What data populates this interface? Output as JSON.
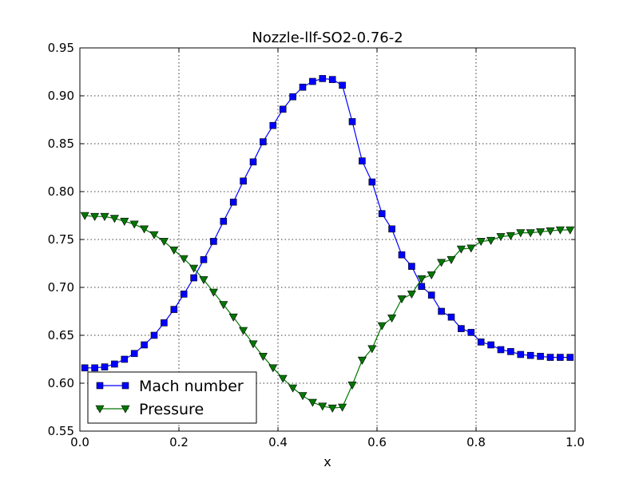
{
  "chart_data": {
    "type": "line",
    "title": "Nozzle-llf-SO2-0.76-2",
    "xlabel": "x",
    "ylabel": "",
    "xlim": [
      0.0,
      1.0
    ],
    "ylim": [
      0.55,
      0.95
    ],
    "xticks": [
      "0.0",
      "0.2",
      "0.4",
      "0.6",
      "0.8",
      "1.0"
    ],
    "yticks": [
      "0.55",
      "0.60",
      "0.65",
      "0.70",
      "0.75",
      "0.80",
      "0.85",
      "0.90",
      "0.95"
    ],
    "grid": true,
    "legend_position": "lower-left",
    "x": [
      0.01,
      0.03,
      0.05,
      0.07,
      0.09,
      0.11,
      0.13,
      0.15,
      0.17,
      0.19,
      0.21,
      0.23,
      0.25,
      0.27,
      0.29,
      0.31,
      0.33,
      0.35,
      0.37,
      0.39,
      0.41,
      0.43,
      0.45,
      0.47,
      0.49,
      0.51,
      0.53,
      0.55,
      0.57,
      0.59,
      0.61,
      0.63,
      0.65,
      0.67,
      0.69,
      0.71,
      0.73,
      0.75,
      0.77,
      0.79,
      0.81,
      0.83,
      0.85,
      0.87,
      0.89,
      0.91,
      0.93,
      0.95,
      0.97,
      0.99
    ],
    "series": [
      {
        "name": "Mach number",
        "color": "#0000ff",
        "marker": "square",
        "values": [
          0.616,
          0.616,
          0.617,
          0.62,
          0.625,
          0.631,
          0.64,
          0.65,
          0.663,
          0.677,
          0.693,
          0.71,
          0.729,
          0.748,
          0.769,
          0.789,
          0.811,
          0.831,
          0.852,
          0.869,
          0.886,
          0.899,
          0.909,
          0.915,
          0.918,
          0.917,
          0.911,
          0.873,
          0.832,
          0.81,
          0.777,
          0.761,
          0.734,
          0.722,
          0.701,
          0.692,
          0.675,
          0.669,
          0.657,
          0.653,
          0.643,
          0.64,
          0.635,
          0.633,
          0.63,
          0.629,
          0.628,
          0.627,
          0.627,
          0.627
        ]
      },
      {
        "name": "Pressure",
        "color": "#007700",
        "marker": "triangle-down",
        "values": [
          0.775,
          0.774,
          0.774,
          0.772,
          0.769,
          0.766,
          0.761,
          0.755,
          0.748,
          0.739,
          0.73,
          0.72,
          0.708,
          0.695,
          0.682,
          0.669,
          0.655,
          0.641,
          0.628,
          0.616,
          0.605,
          0.595,
          0.587,
          0.58,
          0.576,
          0.574,
          0.575,
          0.598,
          0.624,
          0.636,
          0.66,
          0.668,
          0.688,
          0.693,
          0.709,
          0.713,
          0.726,
          0.729,
          0.74,
          0.741,
          0.748,
          0.749,
          0.753,
          0.754,
          0.757,
          0.757,
          0.758,
          0.759,
          0.76,
          0.76
        ]
      }
    ]
  }
}
